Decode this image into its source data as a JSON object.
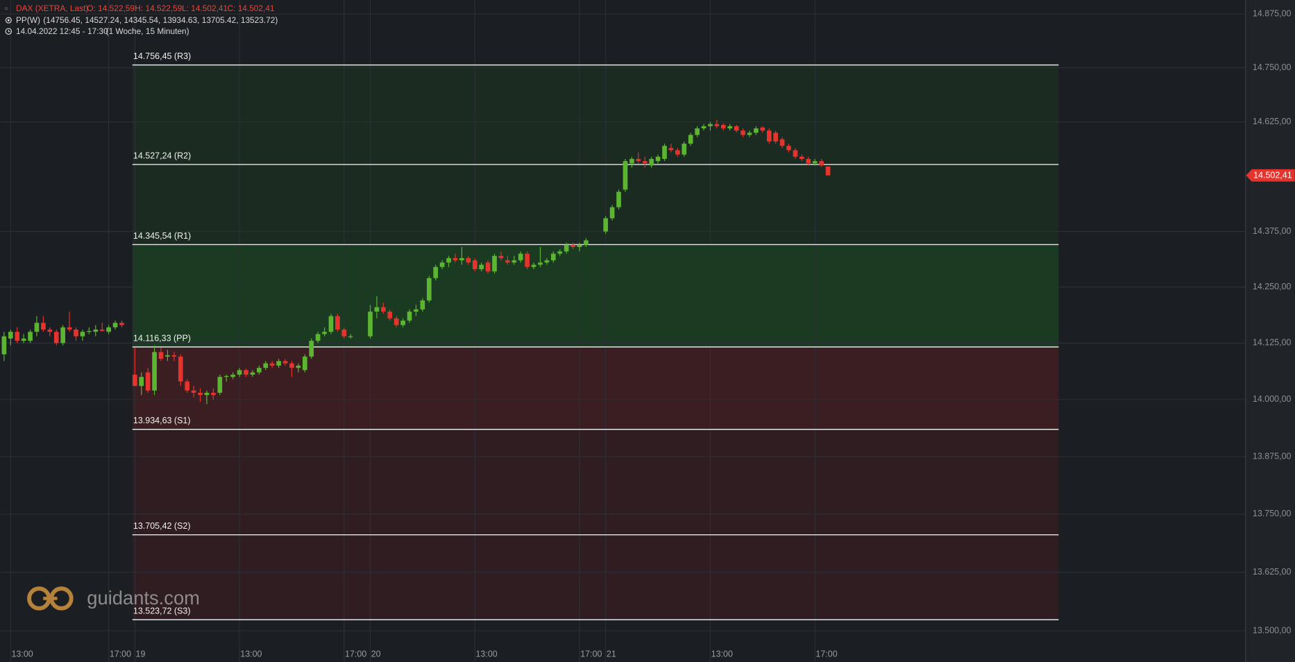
{
  "chart_data": {
    "type": "candlestick",
    "title": "DAX (XETRA, Last)",
    "ohlc_labels": [
      "O: 14.522,59",
      "H: 14.522,59",
      "L: 14.502,41",
      "C: 14.502,41"
    ],
    "indicator_name": "PP(W)",
    "indicator_params": "(14756.45, 14527.24, 14345.54, 13934.63, 13705.42, 13523.72)",
    "period": "14.04.2022 12:45 - 17:30",
    "period_note": "(1 Woche, 15 Minuten)",
    "watermark": "guidants.com",
    "log_scale": true,
    "grid": true,
    "up_color": "#5cb531",
    "down_color": "#e5332e",
    "xlim": [
      -20.58,
      169.8
    ],
    "ylim": [
      13434,
      14908
    ],
    "xticks": [
      {
        "value": -19,
        "label": "13:00"
      },
      {
        "value": -4,
        "label": "17:00"
      },
      {
        "value": 0,
        "label": "19"
      },
      {
        "value": 16,
        "label": "13:00"
      },
      {
        "value": 32,
        "label": "17:00"
      },
      {
        "value": 36,
        "label": "20"
      },
      {
        "value": 52,
        "label": "13:00"
      },
      {
        "value": 68,
        "label": "17:00"
      },
      {
        "value": 72,
        "label": "21"
      },
      {
        "value": 88,
        "label": "13:00"
      },
      {
        "value": 104,
        "label": "17:00"
      }
    ],
    "yticks": [
      {
        "value": 14875,
        "label": "14.875,00"
      },
      {
        "value": 14750,
        "label": "14.750,00"
      },
      {
        "value": 14625,
        "label": "14.625,00"
      },
      {
        "value": 14375,
        "label": "14.375,00"
      },
      {
        "value": 14250,
        "label": "14.250,00"
      },
      {
        "value": 14125,
        "label": "14.125,00"
      },
      {
        "value": 14000,
        "label": "14.000,00"
      },
      {
        "value": 13875,
        "label": "13.875,00"
      },
      {
        "value": 13750,
        "label": "13.750,00"
      },
      {
        "value": 13625,
        "label": "13.625,00"
      },
      {
        "value": 13500,
        "label": "13.500,00"
      }
    ],
    "last_price": {
      "value": 14502.41,
      "label": "14.502,41"
    },
    "levels": [
      {
        "label": "14.756,45 (R3)",
        "value": 14756.45
      },
      {
        "label": "14.527,24 (R2)",
        "value": 14527.24
      },
      {
        "label": "14.345,54 (R1)",
        "value": 14345.54
      },
      {
        "label": "14.116,33 (PP)",
        "value": 14116.33
      },
      {
        "label": "13.934,63 (S1)",
        "value": 13934.63
      },
      {
        "label": "13.705,42 (S2)",
        "value": 13705.42
      },
      {
        "label": "13.523,72 (S3)",
        "value": 13523.72
      }
    ],
    "series": [
      {
        "x": [
          -20,
          -19,
          -18,
          -17,
          -16,
          -15,
          -14,
          -13,
          -12,
          -11,
          -10,
          -9,
          -8,
          -7,
          -6,
          -5,
          -4,
          -3,
          -2,
          0,
          1,
          2,
          3,
          4,
          5,
          6,
          7,
          8,
          9,
          10,
          11,
          12,
          13,
          14,
          15,
          16,
          17,
          18,
          19,
          20,
          21,
          22,
          23,
          24,
          25,
          26,
          27,
          28,
          29,
          30,
          31,
          32,
          33,
          36,
          37,
          38,
          39,
          40,
          41,
          42,
          43,
          44,
          45,
          46,
          47,
          48,
          49,
          50,
          51,
          52,
          53,
          54,
          55,
          56,
          57,
          58,
          59,
          60,
          61,
          62,
          63,
          64,
          65,
          66,
          67,
          68,
          69,
          72,
          73,
          74,
          75,
          76,
          77,
          78,
          79,
          80,
          81,
          82,
          83,
          84,
          85,
          86,
          87,
          88,
          89,
          90,
          91,
          92,
          93,
          94,
          95,
          96,
          97,
          98,
          99,
          100,
          101,
          102,
          103,
          104,
          105,
          106
        ],
        "open": [
          14100,
          14135,
          14150,
          14130,
          14130,
          14150,
          14170,
          14155,
          14150,
          14125,
          14160,
          14155,
          14140,
          14150,
          14150,
          14155,
          14150,
          14160,
          14170,
          14055,
          14030,
          14060,
          14020,
          14105,
          14095,
          14098,
          14095,
          14040,
          14020,
          14015,
          14010,
          14015,
          14015,
          14050,
          14050,
          14055,
          14065,
          14055,
          14060,
          14070,
          14080,
          14075,
          14085,
          14080,
          14070,
          14065,
          14095,
          14130,
          14145,
          14150,
          14185,
          14155,
          14140,
          14140,
          14195,
          14205,
          14195,
          14180,
          14165,
          14175,
          14195,
          14200,
          14220,
          14270,
          14295,
          14305,
          14315,
          14310,
          14315,
          14310,
          14290,
          14305,
          14285,
          14320,
          14310,
          14305,
          14310,
          14325,
          14295,
          14300,
          14305,
          14310,
          14325,
          14330,
          14345,
          14340,
          14345,
          14375,
          14405,
          14430,
          14470,
          14530,
          14540,
          14535,
          14525,
          14535,
          14540,
          14565,
          14560,
          14550,
          14575,
          14595,
          14610,
          14615,
          14620,
          14618,
          14610,
          14615,
          14605,
          14595,
          14600,
          14612,
          14605,
          14600,
          14585,
          14570,
          14560,
          14545,
          14540,
          14530,
          14535,
          14522.59
        ],
        "high": [
          14150,
          14155,
          14160,
          14145,
          14155,
          14185,
          14185,
          14160,
          14155,
          14165,
          14195,
          14160,
          14155,
          14160,
          14165,
          14170,
          14165,
          14175,
          14175,
          14115,
          14060,
          14070,
          14120,
          14115,
          14110,
          14105,
          14100,
          14045,
          14030,
          14025,
          14020,
          14025,
          14055,
          14055,
          14060,
          14070,
          14068,
          14065,
          14075,
          14085,
          14085,
          14090,
          14090,
          14085,
          14080,
          14100,
          14135,
          14150,
          14160,
          14190,
          14190,
          14160,
          14145,
          14210,
          14230,
          14215,
          14200,
          14185,
          14180,
          14200,
          14210,
          14225,
          14275,
          14300,
          14310,
          14320,
          14325,
          14340,
          14320,
          14315,
          14305,
          14310,
          14325,
          14330,
          14320,
          14320,
          14330,
          14330,
          14305,
          14340,
          14315,
          14330,
          14335,
          14350,
          14350,
          14350,
          14360,
          14410,
          14435,
          14470,
          14540,
          14545,
          14555,
          14545,
          14545,
          14550,
          14575,
          14575,
          14565,
          14580,
          14600,
          14615,
          14620,
          14625,
          14630,
          14622,
          14620,
          14618,
          14610,
          14605,
          14615,
          14615,
          14610,
          14605,
          14590,
          14575,
          14565,
          14550,
          14545,
          14540,
          14540,
          14522.59
        ],
        "low": [
          14085,
          14120,
          14125,
          14125,
          14125,
          14140,
          14150,
          14140,
          14120,
          14120,
          14150,
          14130,
          14130,
          14145,
          14140,
          14150,
          14145,
          14155,
          14160,
          14030,
          14010,
          14015,
          14010,
          14085,
          14085,
          14085,
          14030,
          14015,
          14005,
          13995,
          13990,
          14000,
          14010,
          14040,
          14045,
          14050,
          14050,
          14050,
          14055,
          14065,
          14070,
          14070,
          14075,
          14050,
          14060,
          14060,
          14090,
          14125,
          14140,
          14145,
          14150,
          14135,
          14135,
          14135,
          14180,
          14190,
          14175,
          14160,
          14160,
          14170,
          14185,
          14195,
          14215,
          14265,
          14290,
          14295,
          14305,
          14300,
          14300,
          14285,
          14285,
          14280,
          14280,
          14310,
          14300,
          14300,
          14305,
          14290,
          14290,
          14295,
          14300,
          14305,
          14320,
          14325,
          14335,
          14330,
          14340,
          14370,
          14400,
          14425,
          14465,
          14520,
          14530,
          14520,
          14520,
          14530,
          14535,
          14555,
          14545,
          14545,
          14570,
          14590,
          14605,
          14605,
          14610,
          14605,
          14605,
          14600,
          14590,
          14590,
          14595,
          14600,
          14575,
          14575,
          14565,
          14555,
          14540,
          14535,
          14525,
          14525,
          14522,
          14502.41
        ],
        "close": [
          14140,
          14150,
          14130,
          14135,
          14150,
          14170,
          14155,
          14150,
          14125,
          14160,
          14155,
          14140,
          14150,
          14152,
          14155,
          14152,
          14160,
          14170,
          14165,
          14030,
          14050,
          14020,
          14105,
          14090,
          14098,
          14095,
          14040,
          14020,
          14015,
          14010,
          14015,
          14010,
          14050,
          14052,
          14055,
          14065,
          14055,
          14060,
          14070,
          14080,
          14075,
          14085,
          14080,
          14070,
          14075,
          14095,
          14130,
          14145,
          14150,
          14185,
          14155,
          14140,
          14140,
          14195,
          14205,
          14195,
          14180,
          14165,
          14175,
          14195,
          14200,
          14220,
          14270,
          14295,
          14305,
          14315,
          14310,
          14315,
          14305,
          14290,
          14300,
          14285,
          14320,
          14315,
          14305,
          14310,
          14325,
          14295,
          14300,
          14305,
          14310,
          14325,
          14330,
          14345,
          14340,
          14345,
          14355,
          14405,
          14430,
          14465,
          14535,
          14540,
          14535,
          14530,
          14540,
          14545,
          14570,
          14560,
          14550,
          14575,
          14595,
          14610,
          14615,
          14620,
          14615,
          14610,
          14615,
          14605,
          14595,
          14600,
          14610,
          14605,
          14580,
          14580,
          14570,
          14560,
          14545,
          14540,
          14530,
          14535,
          14525,
          14502.41
        ]
      }
    ]
  }
}
